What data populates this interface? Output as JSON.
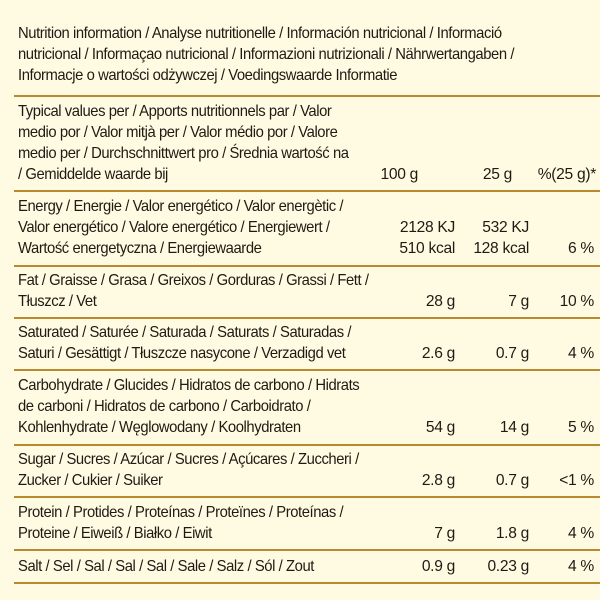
{
  "header": {
    "lines": [
      "Nutrition information / Analyse nutritionelle / Información nutricional / Informació",
      "nutricional / Informaçao nutricional / Informazioni nutrizionali / Nährwertangaben /",
      "Informacje o wartości odżywczej / Voedingswaarde Informatie"
    ]
  },
  "columns": {
    "label_lines": [
      "Typical values per / Apports nutritionnels par / Valor",
      "medio por / Valor mitjà per / Valor médio por / Valore",
      "medio per / Durchschnittwert pro / Średnia wartość na",
      "/ Gemiddelde waarde bij"
    ],
    "col_100g": "100 g",
    "col_25g": "25 g",
    "col_pct": "%(25 g)*"
  },
  "rows": [
    {
      "label_lines": [
        "Energy / Energie / Valor energético / Valor energètic /",
        "Valor energético / Valore energético / Energiewert /",
        "Wartość energetyczna / Energiewaarde"
      ],
      "v100_lines": [
        "2128 KJ",
        "510 kcal"
      ],
      "v25_lines": [
        "532 KJ",
        "128 kcal"
      ],
      "pct": "6 %"
    },
    {
      "label_lines": [
        "Fat / Graisse / Grasa / Greixos / Gorduras / Grassi / Fett /",
        "Tłuszcz / Vet"
      ],
      "v100": "28 g",
      "v25": "7 g",
      "pct": "10 %"
    },
    {
      "label_lines": [
        "Saturated / Saturée / Saturada / Saturats / Saturadas /",
        "Saturi / Gesättigt / Tłuszcze nasycone / Verzadigd vet"
      ],
      "v100": "2.6 g",
      "v25": "0.7 g",
      "pct": "4 %"
    },
    {
      "label_lines": [
        "Carbohydrate / Glucides / Hidratos de carbono / Hidrats",
        "de carboni / Hidratos de carbono / Carboidrato /",
        "Kohlenhydrate / Węglowodany / Koolhydraten"
      ],
      "v100": "54 g",
      "v25": "14 g",
      "pct": "5 %"
    },
    {
      "label_lines": [
        "Sugar / Sucres / Azúcar / Sucres / Açúcares / Zuccheri /",
        "Zucker / Cukier / Suiker"
      ],
      "v100": "2.8 g",
      "v25": "0.7 g",
      "pct": "<1 %"
    },
    {
      "label_lines": [
        "Protein / Protides / Proteínas / Proteïnes / Proteínas /",
        "Proteine / Eiweiß / Białko / Eiwit"
      ],
      "v100": "7 g",
      "v25": "1.8 g",
      "pct": "4 %"
    },
    {
      "label_lines": [
        "Salt / Sel / Sal / Sal / Sal / Sale / Salz / Sól / Zout"
      ],
      "v100": "0.9 g",
      "v25": "0.23 g",
      "pct": "4 %"
    }
  ]
}
